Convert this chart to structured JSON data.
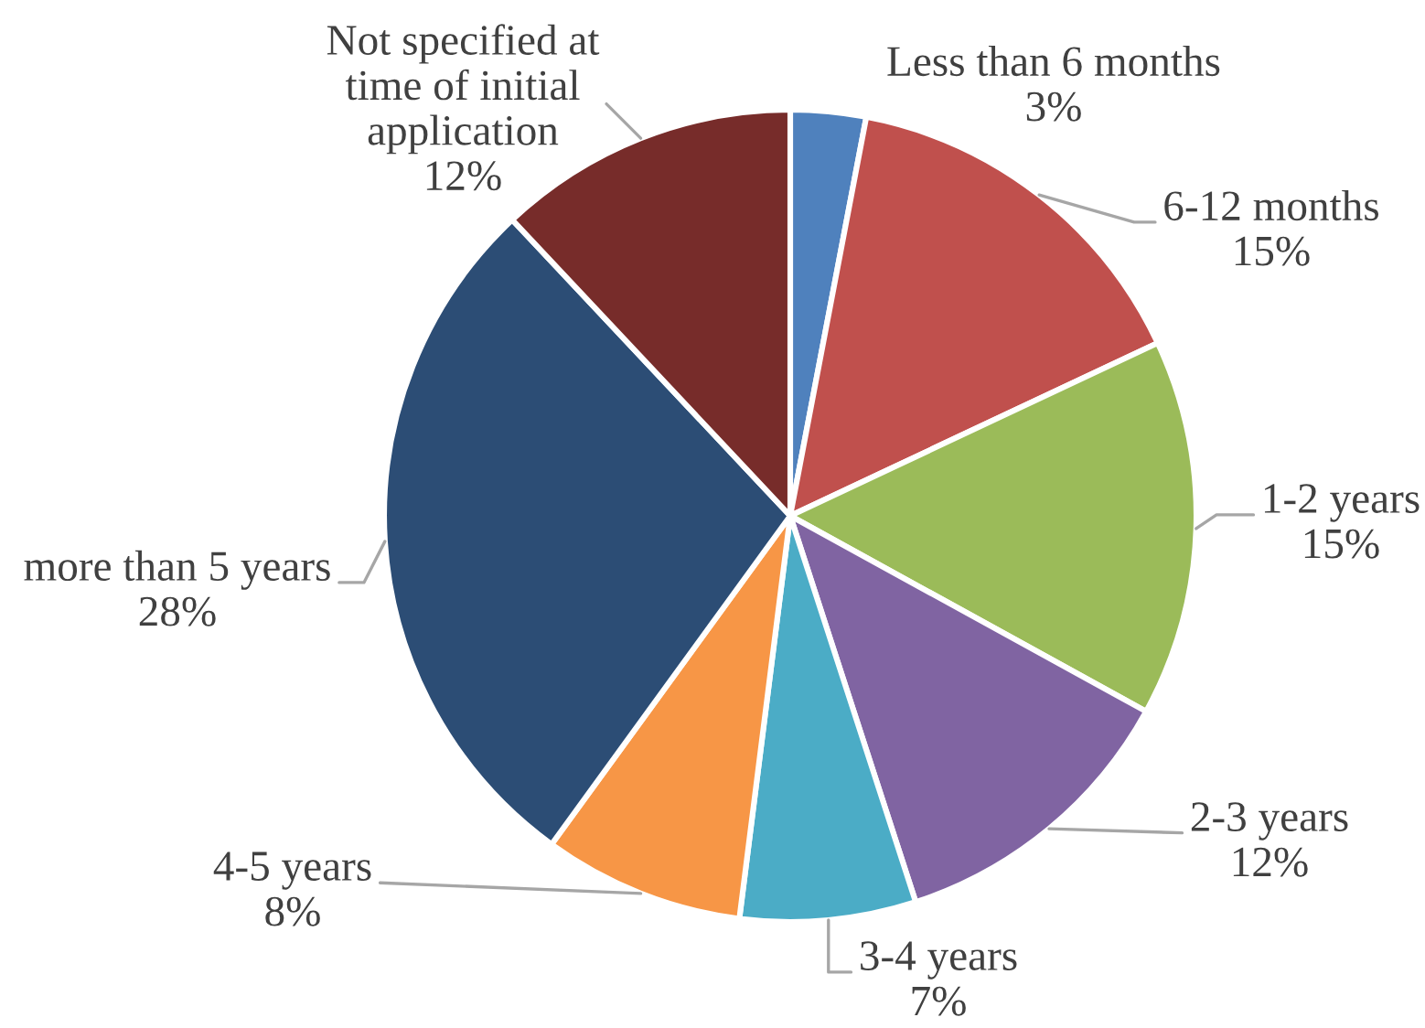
{
  "chart_data": {
    "type": "pie",
    "categories": [
      "Less than 6 months",
      "6-12 months",
      "1-2 years",
      "2-3 years",
      "3-4 years",
      "4-5 years",
      "more than 5 years",
      "Not specified at time of initial application"
    ],
    "values": [
      3,
      15,
      15,
      12,
      7,
      8,
      28,
      12
    ],
    "value_labels": [
      "3%",
      "15%",
      "15%",
      "12%",
      "7%",
      "8%",
      "28%",
      "12%"
    ],
    "colors": [
      "#4f81bd",
      "#c0504d",
      "#9bbb59",
      "#8064a2",
      "#4bacc6",
      "#f79646",
      "#2c4d75",
      "#772c2a"
    ]
  }
}
